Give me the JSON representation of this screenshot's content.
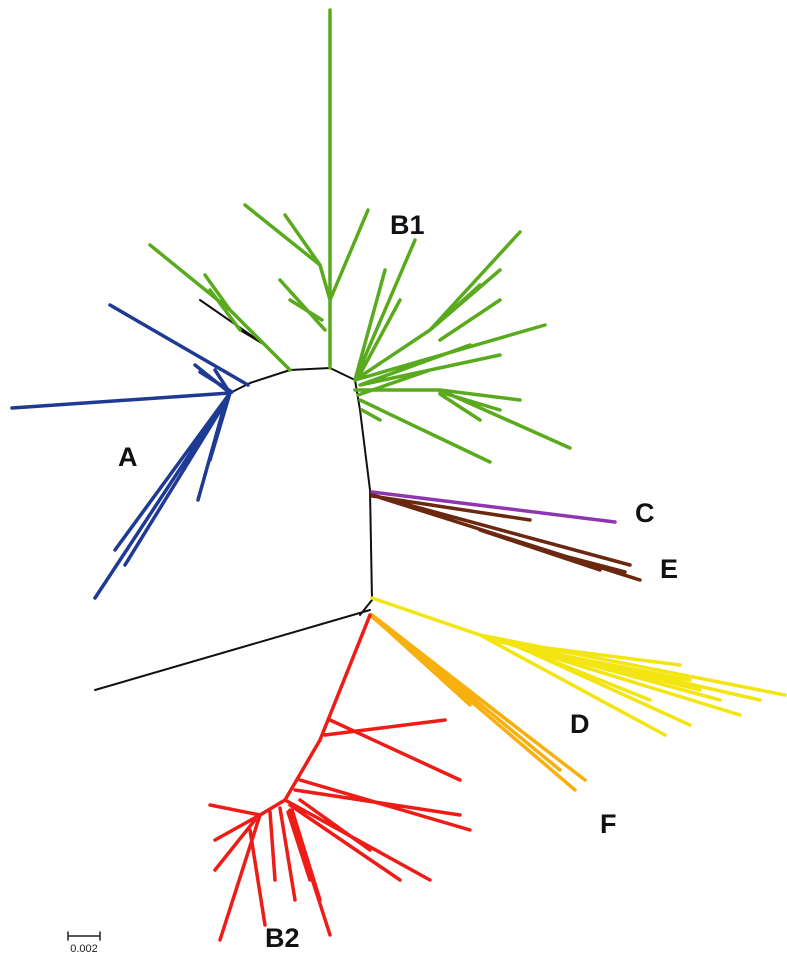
{
  "clades": [
    {
      "label": "A"
    },
    {
      "label": "B1"
    },
    {
      "label": "B2"
    },
    {
      "label": "C"
    },
    {
      "label": "D"
    },
    {
      "label": "E"
    },
    {
      "label": "F"
    }
  ],
  "scale_bar": {
    "label": "0.002"
  }
}
